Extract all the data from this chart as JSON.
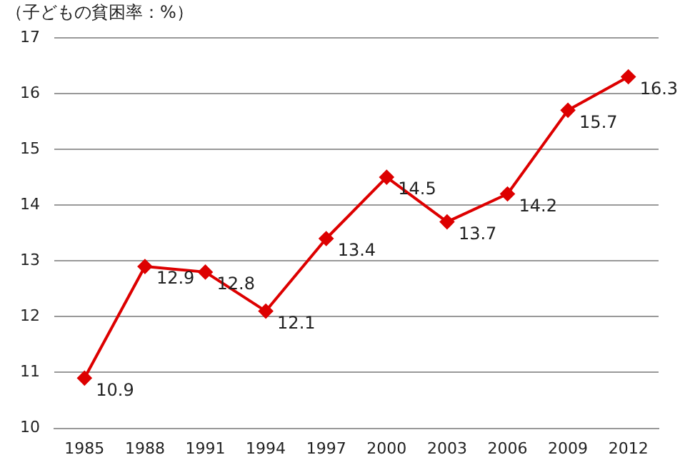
{
  "chart_data": {
    "type": "line",
    "title": "（子どもの貧困率：%）",
    "categories": [
      "1985",
      "1988",
      "1991",
      "1994",
      "1997",
      "2000",
      "2003",
      "2006",
      "2009",
      "2012"
    ],
    "series": [
      {
        "color": "#dd0000",
        "values": [
          10.9,
          12.9,
          12.8,
          12.1,
          13.4,
          14.5,
          13.7,
          14.2,
          15.7,
          16.3
        ]
      }
    ],
    "ylim": [
      10,
      17
    ],
    "yticks": [
      10,
      11,
      12,
      13,
      14,
      15,
      16,
      17
    ],
    "grid": "y",
    "legend": false,
    "marker": "diamond",
    "line_style": "solid",
    "data_labels": true
  }
}
